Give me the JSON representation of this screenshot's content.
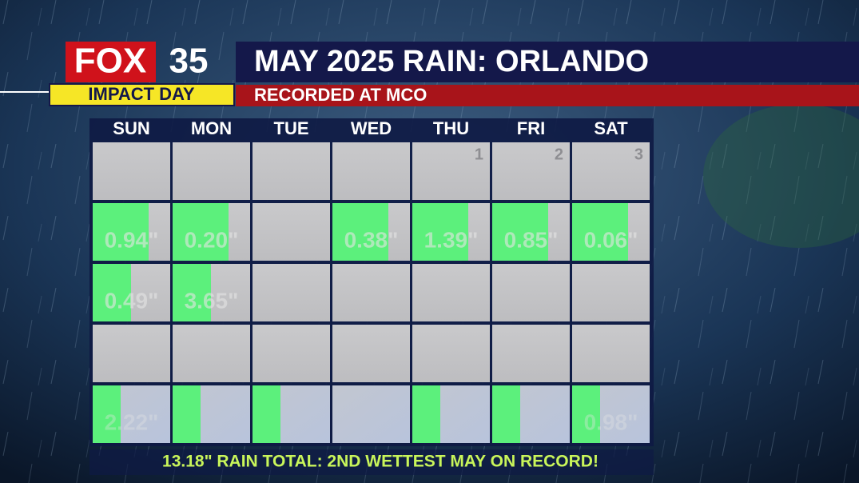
{
  "logo": {
    "brand": "FOX",
    "channel": "35",
    "tag": "IMPACT DAY"
  },
  "header": {
    "title": "MAY 2025 RAIN: ORLANDO",
    "subtitle": "RECORDED AT MCO"
  },
  "calendar": {
    "weekdays": [
      "SUN",
      "MON",
      "TUE",
      "WED",
      "THU",
      "FRI",
      "SAT"
    ],
    "highlight_color": "#5cf07c",
    "weeks": [
      [
        {
          "highlight": false
        },
        {
          "highlight": false
        },
        {
          "highlight": false
        },
        {
          "highlight": false
        },
        {
          "day": 1,
          "highlight": false
        },
        {
          "day": 2,
          "highlight": false
        },
        {
          "day": 3,
          "highlight": false
        }
      ],
      [
        {
          "rain": "0.94\"",
          "highlight": true
        },
        {
          "rain": "0.20\"",
          "highlight": true
        },
        {
          "highlight": false
        },
        {
          "rain": "0.38\"",
          "highlight": true
        },
        {
          "rain": "1.39\"",
          "highlight": true
        },
        {
          "rain": "0.85\"",
          "highlight": true
        },
        {
          "rain": "0.06\"",
          "highlight": true
        }
      ],
      [
        {
          "rain": "0.49\"",
          "highlight": true
        },
        {
          "rain": "3.65\"",
          "highlight": true
        },
        {
          "highlight": false
        },
        {
          "highlight": false
        },
        {
          "highlight": false
        },
        {
          "highlight": false
        },
        {
          "highlight": false
        }
      ],
      [
        {
          "highlight": false
        },
        {
          "highlight": false
        },
        {
          "highlight": false
        },
        {
          "highlight": false
        },
        {
          "highlight": false
        },
        {
          "highlight": false
        },
        {
          "highlight": false
        }
      ],
      [
        {
          "rain": "2.22\"",
          "highlight": true
        },
        {
          "highlight": true
        },
        {
          "highlight": true
        },
        {
          "highlight": false
        },
        {
          "highlight": true
        },
        {
          "highlight": true
        },
        {
          "rain": "0.98\"",
          "highlight": true
        }
      ]
    ]
  },
  "footer": "13.18\" RAIN TOTAL: 2ND WETTEST MAY ON RECORD!"
}
